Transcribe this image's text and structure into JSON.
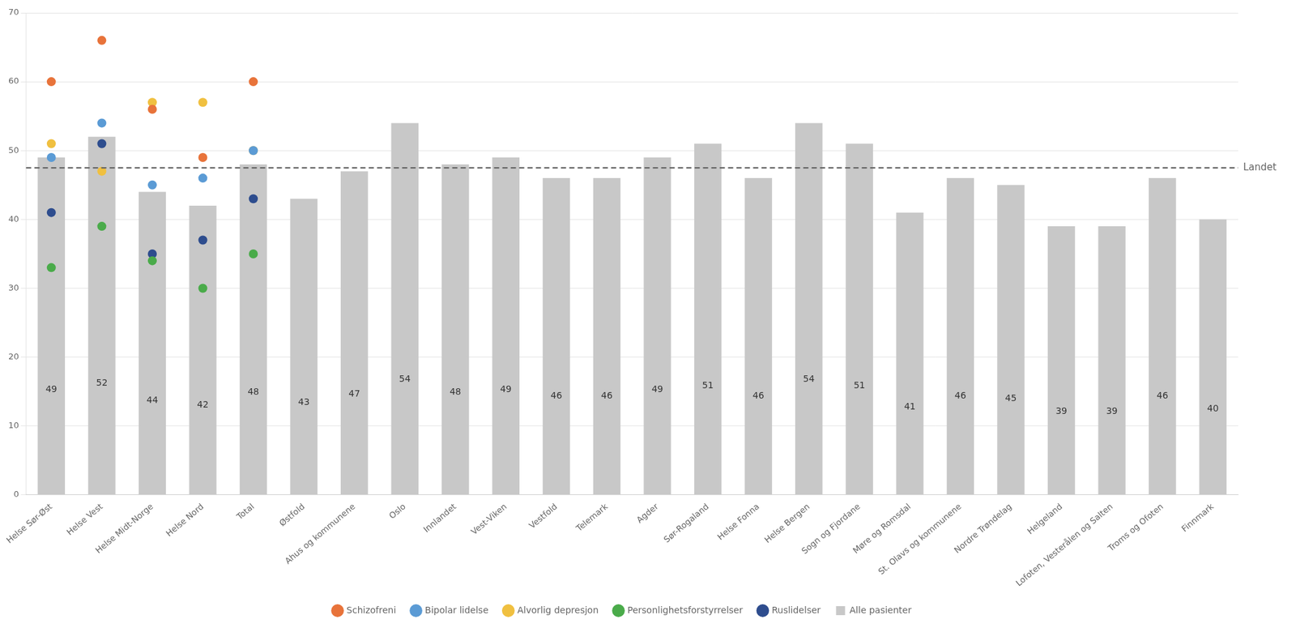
{
  "chart_data": {
    "type": "bar",
    "categories": [
      "Helse Sør-Øst",
      "Helse Vest",
      "Helse Midt-Norge",
      "Helse Nord",
      "Total",
      "Østfold",
      "Ahus og kommunene",
      "Oslo",
      "Innlandet",
      "Vest-Viken",
      "Vestfold",
      "Telemark",
      "Agder",
      "Sør-Rogaland",
      "Helse Fonna",
      "Helse Bergen",
      "Sogn og Fjordane",
      "Møre og Romsdal",
      "St. Olavs og kommunene",
      "Nordre Trøndelag",
      "Helgeland",
      "Lofoten, Vesterålen og Salten",
      "Troms og Ofoten",
      "Finnmark"
    ],
    "series": [
      {
        "name": "Alle pasienter",
        "type": "bar",
        "color": "#c8c8c8",
        "data_labels": true,
        "values": [
          49,
          52,
          44,
          42,
          48,
          43,
          47,
          54,
          48,
          49,
          46,
          46,
          49,
          51,
          46,
          54,
          51,
          41,
          46,
          45,
          39,
          39,
          46,
          40
        ]
      },
      {
        "name": "Schizofreni",
        "type": "scatter",
        "marker": "circle",
        "color": "#e8733a",
        "values": [
          60,
          66,
          56,
          49,
          60,
          null,
          null,
          null,
          null,
          null,
          null,
          null,
          null,
          null,
          null,
          null,
          null,
          null,
          null,
          null,
          null,
          null,
          null,
          null
        ]
      },
      {
        "name": "Bipolar lidelse",
        "type": "scatter",
        "marker": "circle",
        "color": "#5b9bd5",
        "values": [
          49,
          54,
          45,
          46,
          50,
          null,
          null,
          null,
          null,
          null,
          null,
          null,
          null,
          null,
          null,
          null,
          null,
          null,
          null,
          null,
          null,
          null,
          null,
          null
        ]
      },
      {
        "name": "Alvorlig depresjon",
        "type": "scatter",
        "marker": "circle",
        "color": "#f0c040",
        "values": [
          51,
          47,
          57,
          57,
          50,
          null,
          null,
          null,
          null,
          null,
          null,
          null,
          null,
          null,
          null,
          null,
          null,
          null,
          null,
          null,
          null,
          null,
          null,
          null
        ]
      },
      {
        "name": "Personlighetsforstyrrelser",
        "type": "scatter",
        "marker": "circle",
        "color": "#4aab4a",
        "values": [
          33,
          39,
          34,
          30,
          35,
          null,
          null,
          null,
          null,
          null,
          null,
          null,
          null,
          null,
          null,
          null,
          null,
          null,
          null,
          null,
          null,
          null,
          null,
          null
        ]
      },
      {
        "name": "Ruslidelser",
        "type": "scatter",
        "marker": "circle",
        "color": "#2e4d8e",
        "values": [
          41,
          51,
          35,
          37,
          43,
          null,
          null,
          null,
          null,
          null,
          null,
          null,
          null,
          null,
          null,
          null,
          null,
          null,
          null,
          null,
          null,
          null,
          null,
          null
        ]
      }
    ],
    "annotations": [
      {
        "text": "Landet",
        "y": 47.5,
        "color": "#666666",
        "line_style": "dashed"
      }
    ],
    "ylim": [
      0,
      70
    ],
    "yticks": [
      0,
      10,
      20,
      30,
      40,
      50,
      60,
      70
    ],
    "grid": true,
    "legend": "bottom"
  }
}
